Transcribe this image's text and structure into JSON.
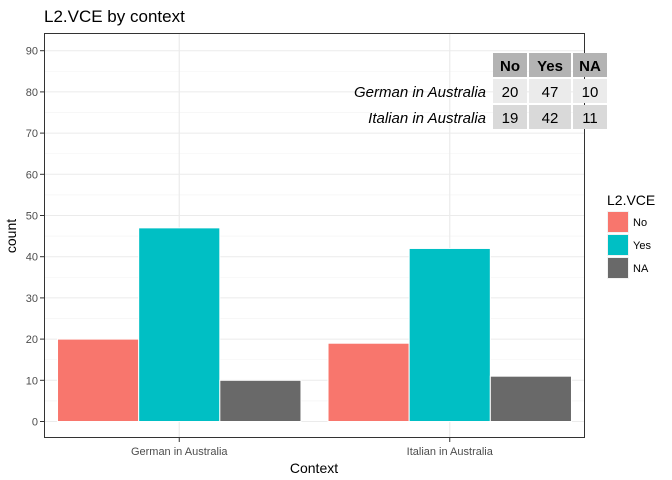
{
  "chart_data": {
    "type": "bar",
    "title": "L2.VCE by context",
    "xlabel": "Context",
    "ylabel": "count",
    "categories": [
      "German in Australia",
      "Italian in Australia"
    ],
    "series": [
      {
        "name": "No",
        "values": [
          20,
          19
        ],
        "color": "#F8766D"
      },
      {
        "name": "Yes",
        "values": [
          47,
          42
        ],
        "color": "#00BFC4"
      },
      {
        "name": "NA",
        "values": [
          10,
          11
        ],
        "color": "#696969"
      }
    ],
    "ylim": [
      0,
      90
    ],
    "yticks": [
      0,
      10,
      20,
      30,
      40,
      50,
      60,
      70,
      80,
      90
    ],
    "grid": true,
    "legend": {
      "title": "L2.VCE",
      "position": "right"
    },
    "table": {
      "columns": [
        "No",
        "Yes",
        "NA"
      ],
      "rows": [
        {
          "label": "German in Australia",
          "values": [
            "20",
            "47",
            "10"
          ]
        },
        {
          "label": "Italian in Australia",
          "values": [
            "19",
            "42",
            "11"
          ]
        }
      ],
      "position": "top-right"
    }
  },
  "colors": {
    "panel_border": "#333333",
    "grid_major": "#ebebeb",
    "grid_minor": "#f5f5f5",
    "table_header": "#b3b3b3",
    "table_row_odd": "#ebebeb",
    "table_row_even": "#d9d9d9"
  }
}
